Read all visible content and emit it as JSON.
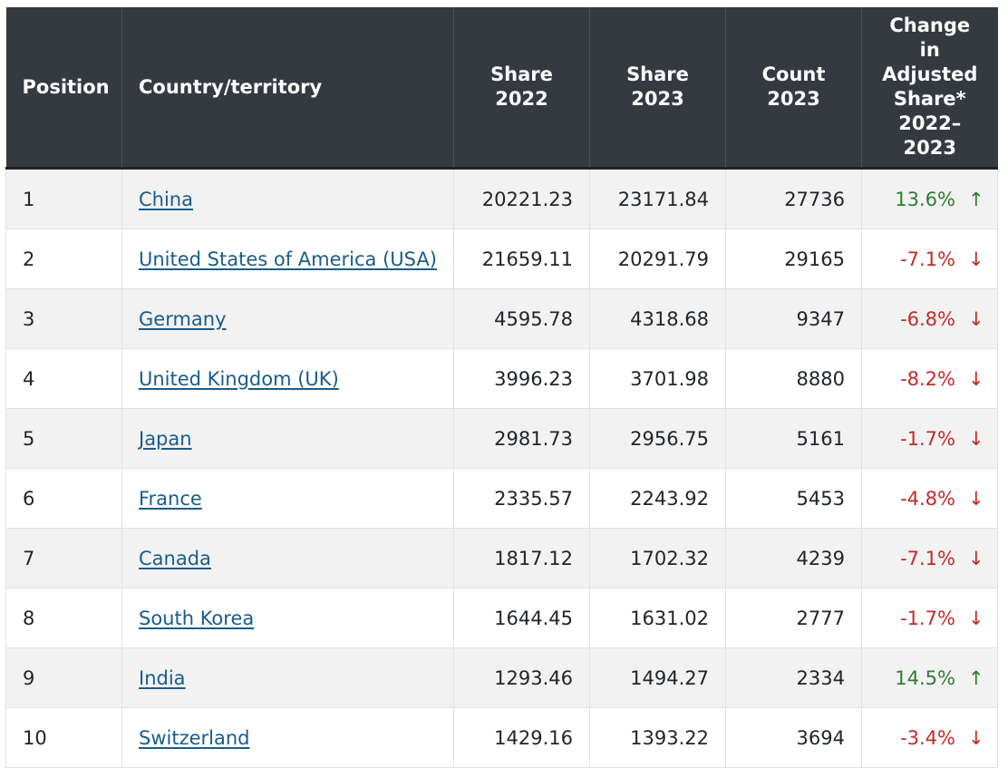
{
  "headers": {
    "position": "Position",
    "country": "Country/territory",
    "share2022": [
      "Share",
      "2022"
    ],
    "share2023": [
      "Share",
      "2023"
    ],
    "count2023": [
      "Count",
      "2023"
    ],
    "change": [
      "Change in",
      "Adjusted",
      "Share*",
      "2022–",
      "2023"
    ]
  },
  "colors": {
    "header_bg": "#343a40",
    "link": "#1a5c8a",
    "up": "#2e7d32",
    "down": "#c62828",
    "row_alt": "#f2f2f2"
  },
  "rows": [
    {
      "position": "1",
      "country": "China",
      "share2022": "20221.23",
      "share2023": "23171.84",
      "count2023": "27736",
      "change": "13.6%",
      "direction": "up"
    },
    {
      "position": "2",
      "country": "United States of America (USA)",
      "share2022": "21659.11",
      "share2023": "20291.79",
      "count2023": "29165",
      "change": "-7.1%",
      "direction": "down"
    },
    {
      "position": "3",
      "country": "Germany",
      "share2022": "4595.78",
      "share2023": "4318.68",
      "count2023": "9347",
      "change": "-6.8%",
      "direction": "down"
    },
    {
      "position": "4",
      "country": "United Kingdom (UK)",
      "share2022": "3996.23",
      "share2023": "3701.98",
      "count2023": "8880",
      "change": "-8.2%",
      "direction": "down"
    },
    {
      "position": "5",
      "country": "Japan",
      "share2022": "2981.73",
      "share2023": "2956.75",
      "count2023": "5161",
      "change": "-1.7%",
      "direction": "down"
    },
    {
      "position": "6",
      "country": "France",
      "share2022": "2335.57",
      "share2023": "2243.92",
      "count2023": "5453",
      "change": "-4.8%",
      "direction": "down"
    },
    {
      "position": "7",
      "country": "Canada",
      "share2022": "1817.12",
      "share2023": "1702.32",
      "count2023": "4239",
      "change": "-7.1%",
      "direction": "down"
    },
    {
      "position": "8",
      "country": "South Korea",
      "share2022": "1644.45",
      "share2023": "1631.02",
      "count2023": "2777",
      "change": "-1.7%",
      "direction": "down"
    },
    {
      "position": "9",
      "country": "India",
      "share2022": "1293.46",
      "share2023": "1494.27",
      "count2023": "2334",
      "change": "14.5%",
      "direction": "up"
    },
    {
      "position": "10",
      "country": "Switzerland",
      "share2022": "1429.16",
      "share2023": "1393.22",
      "count2023": "3694",
      "change": "-3.4%",
      "direction": "down"
    }
  ]
}
